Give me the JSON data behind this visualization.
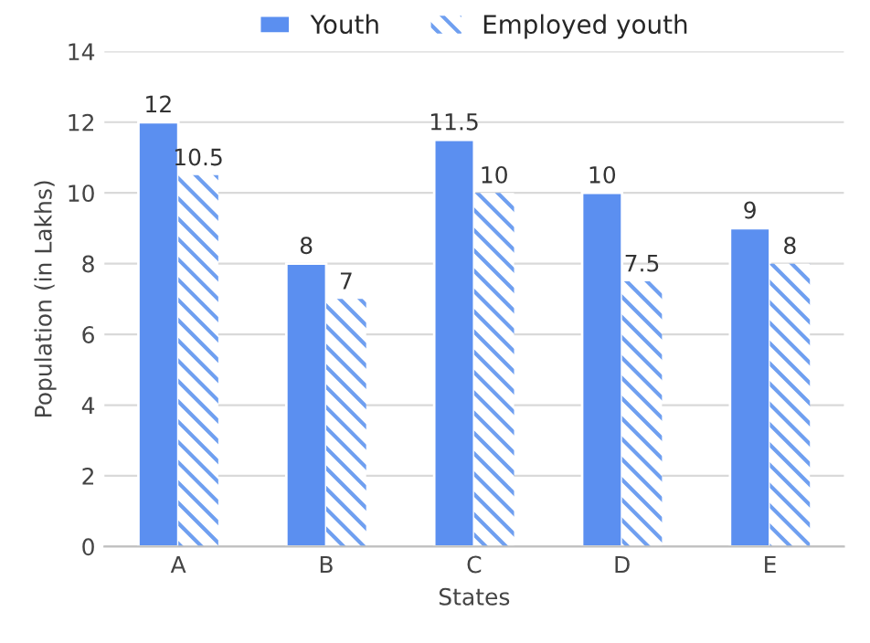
{
  "chart_data": {
    "type": "bar",
    "xlabel": "States",
    "ylabel": "Population (in Lakhs)",
    "categories": [
      "A",
      "B",
      "C",
      "D",
      "E"
    ],
    "series": [
      {
        "name": "Youth",
        "color": "#5b8ff0",
        "values": [
          12,
          8,
          11.5,
          10,
          9
        ]
      },
      {
        "name": "Employed youth",
        "color": "#6f9ff0",
        "values": [
          10.5,
          7,
          10,
          7.5,
          8
        ]
      }
    ],
    "ylim": [
      0,
      14
    ],
    "yticks": [
      0,
      2,
      4,
      6,
      8,
      10,
      12,
      14
    ],
    "grid": "y",
    "legend": "top",
    "data_labels": true
  }
}
